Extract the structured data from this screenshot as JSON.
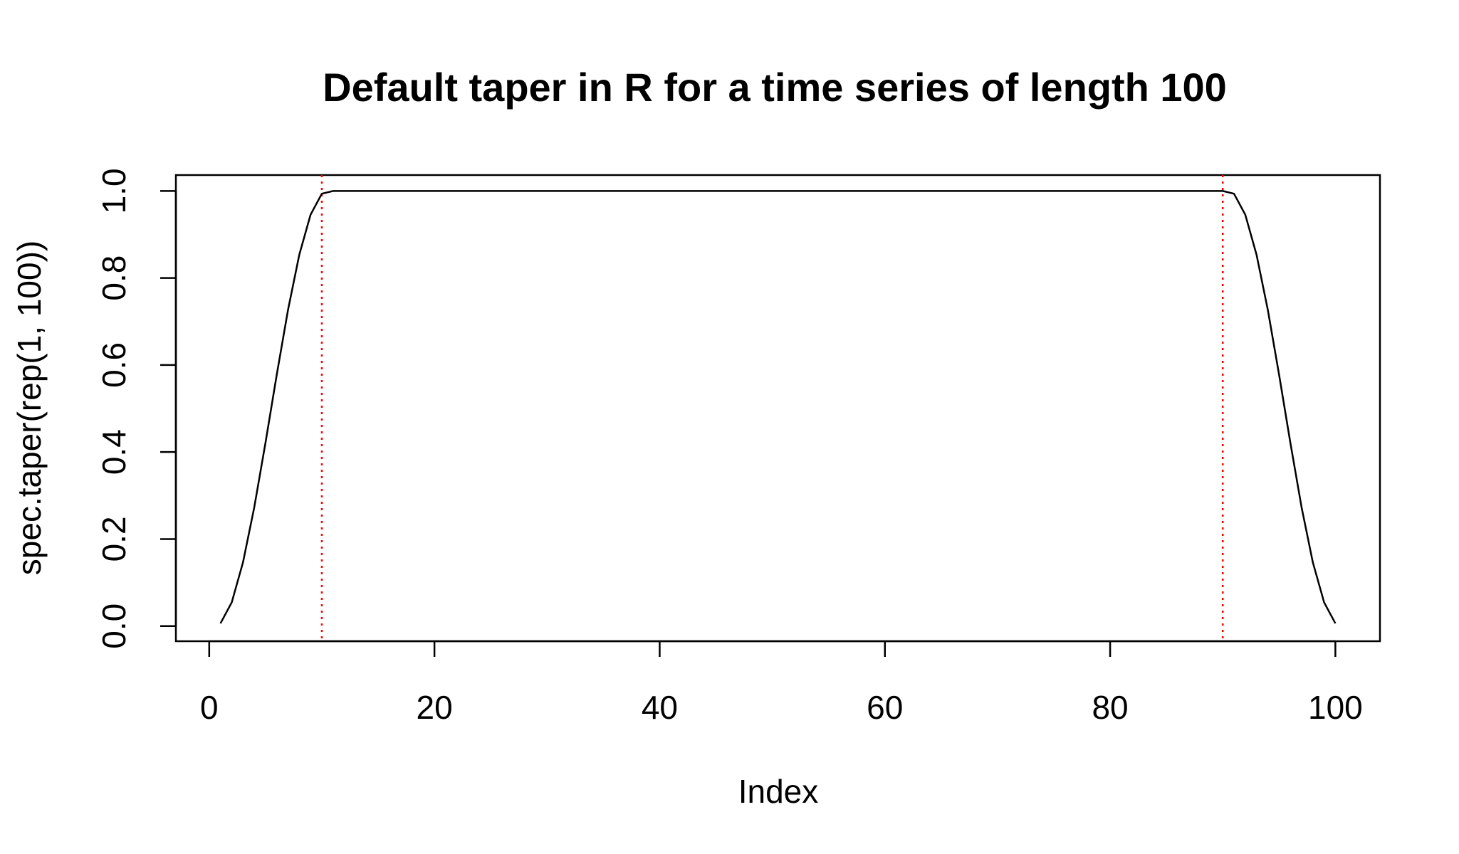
{
  "chart_data": {
    "type": "line",
    "title": "Default taper in R for a time series of length 100",
    "xlabel": "Index",
    "ylabel": "spec.taper(rep(1, 100))",
    "xlim": [
      -2.96,
      103.96
    ],
    "ylim": [
      -0.0348,
      1.0366
    ],
    "x_ticks": [
      0,
      20,
      40,
      60,
      80,
      100
    ],
    "y_ticks": [
      0.0,
      0.2,
      0.4,
      0.6,
      0.8,
      1.0
    ],
    "x_tick_labels": [
      "0",
      "20",
      "40",
      "60",
      "80",
      "100"
    ],
    "y_tick_labels": [
      "0.0",
      "0.2",
      "0.4",
      "0.6",
      "0.8",
      "1.0"
    ],
    "grid": false,
    "colors": {
      "line": "#000000",
      "vline": "#ff0000"
    },
    "series": [
      {
        "x": [
          1,
          2,
          3,
          4,
          5,
          6,
          7,
          8,
          9,
          10,
          11,
          12,
          13,
          14,
          15,
          16,
          17,
          18,
          19,
          20,
          21,
          22,
          23,
          24,
          25,
          26,
          27,
          28,
          29,
          30,
          31,
          32,
          33,
          34,
          35,
          36,
          37,
          38,
          39,
          40,
          41,
          42,
          43,
          44,
          45,
          46,
          47,
          48,
          49,
          50,
          51,
          52,
          53,
          54,
          55,
          56,
          57,
          58,
          59,
          60,
          61,
          62,
          63,
          64,
          65,
          66,
          67,
          68,
          69,
          70,
          71,
          72,
          73,
          74,
          75,
          76,
          77,
          78,
          79,
          80,
          81,
          82,
          83,
          84,
          85,
          86,
          87,
          88,
          89,
          90,
          91,
          92,
          93,
          94,
          95,
          96,
          97,
          98,
          99,
          100
        ],
        "y": [
          0.0062,
          0.0545,
          0.1464,
          0.273,
          0.4218,
          0.5782,
          0.727,
          0.8536,
          0.9455,
          0.9938,
          1,
          1,
          1,
          1,
          1,
          1,
          1,
          1,
          1,
          1,
          1,
          1,
          1,
          1,
          1,
          1,
          1,
          1,
          1,
          1,
          1,
          1,
          1,
          1,
          1,
          1,
          1,
          1,
          1,
          1,
          1,
          1,
          1,
          1,
          1,
          1,
          1,
          1,
          1,
          1,
          1,
          1,
          1,
          1,
          1,
          1,
          1,
          1,
          1,
          1,
          1,
          1,
          1,
          1,
          1,
          1,
          1,
          1,
          1,
          1,
          1,
          1,
          1,
          1,
          1,
          1,
          1,
          1,
          1,
          1,
          1,
          1,
          1,
          1,
          1,
          1,
          1,
          1,
          1,
          1,
          0.9938,
          0.9455,
          0.8536,
          0.727,
          0.5782,
          0.4218,
          0.273,
          0.1464,
          0.0545,
          0.0062
        ]
      }
    ],
    "vlines": [
      10,
      90
    ]
  }
}
